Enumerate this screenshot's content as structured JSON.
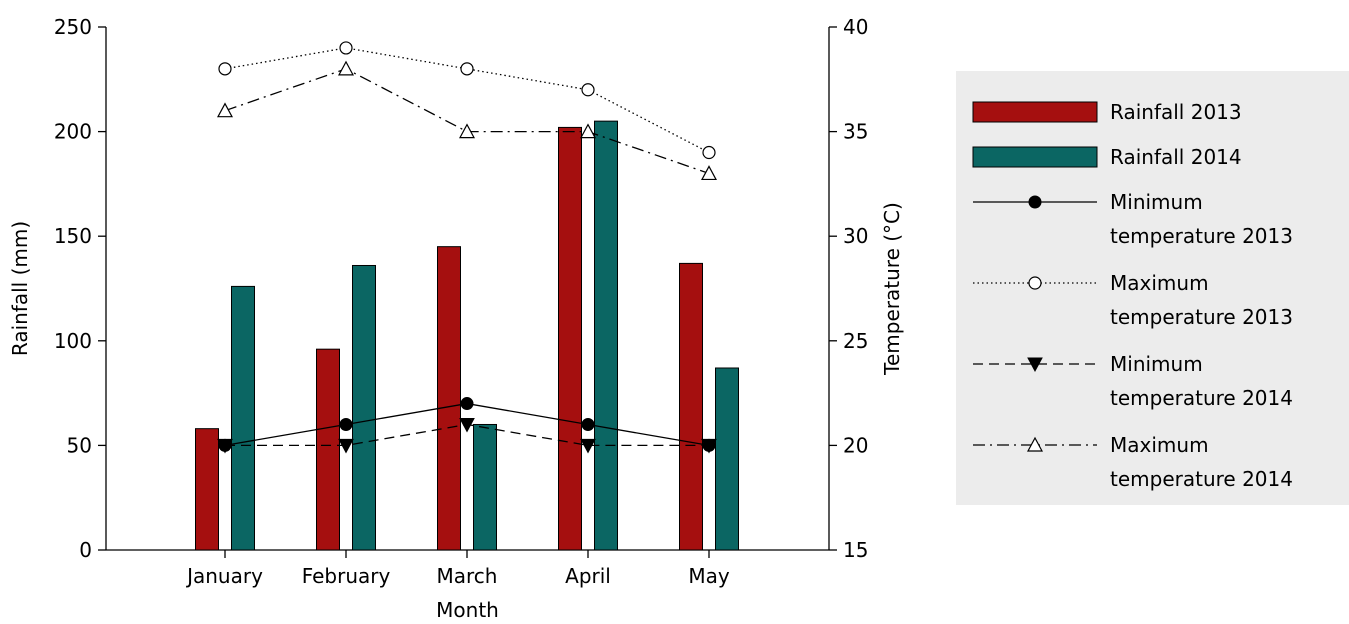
{
  "chart_data": {
    "type": "bar",
    "categories": [
      "January",
      "February",
      "March",
      "April",
      "May"
    ],
    "xlabel": "Month",
    "ylabel": "Rainfall (mm)",
    "y2label": "Temperature  (°C)",
    "ylim": [
      0,
      250
    ],
    "y2lim": [
      15,
      40
    ],
    "yticks": [
      "0",
      "50",
      "100",
      "150",
      "200",
      "250"
    ],
    "y2ticks": [
      "15",
      "20",
      "25",
      "30",
      "35",
      "40"
    ],
    "grid": false,
    "legend_position": "right",
    "bar_series": [
      {
        "name": "Rainfall 2013",
        "values": [
          58,
          96,
          145,
          202,
          137
        ],
        "color": "#a50f0f"
      },
      {
        "name": "Rainfall 2014",
        "values": [
          126,
          136,
          60,
          205,
          87
        ],
        "color": "#0b6663"
      }
    ],
    "line_series": [
      {
        "name": "Minimum temperature 2013",
        "values": [
          20,
          21,
          22,
          21,
          20
        ],
        "marker": "circle-filled",
        "line_style": "solid"
      },
      {
        "name": "Maximum temperature 2013",
        "values": [
          38,
          39,
          38,
          37,
          34
        ],
        "marker": "circle-open",
        "line_style": "dotted"
      },
      {
        "name": "Minimum temperature 2014",
        "values": [
          20,
          20,
          21,
          20,
          20
        ],
        "marker": "triangle-down-filled",
        "line_style": "dashed"
      },
      {
        "name": "Maximum temperature 2014",
        "values": [
          36,
          38,
          35,
          35,
          33
        ],
        "marker": "triangle-up-open",
        "line_style": "dashdot"
      }
    ]
  }
}
